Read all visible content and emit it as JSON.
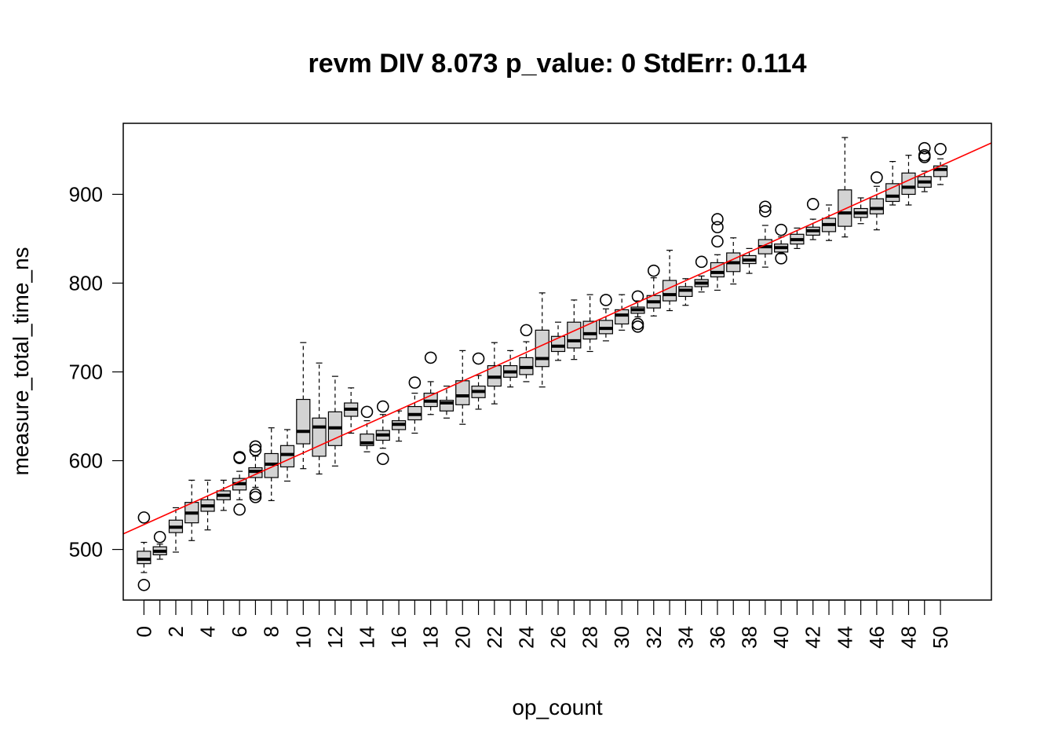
{
  "chart_data": {
    "type": "boxplot",
    "title": "revm DIV 8.073 p_value: 0 StdErr: 0.114",
    "xlabel": "op_count",
    "ylabel": "measure_total_time_ns",
    "categories": [
      "0",
      "1",
      "2",
      "3",
      "4",
      "5",
      "6",
      "7",
      "8",
      "9",
      "10",
      "11",
      "12",
      "13",
      "14",
      "15",
      "16",
      "17",
      "18",
      "19",
      "20",
      "21",
      "22",
      "23",
      "24",
      "25",
      "26",
      "27",
      "28",
      "29",
      "30",
      "31",
      "32",
      "33",
      "34",
      "35",
      "36",
      "37",
      "38",
      "39",
      "40",
      "41",
      "42",
      "43",
      "44",
      "45",
      "46",
      "47",
      "48",
      "49",
      "50"
    ],
    "x_tick_labels": [
      "0",
      "2",
      "4",
      "6",
      "8",
      "10",
      "12",
      "14",
      "16",
      "18",
      "20",
      "22",
      "24",
      "26",
      "28",
      "30",
      "32",
      "34",
      "36",
      "38",
      "40",
      "42",
      "44",
      "46",
      "48",
      "50"
    ],
    "y_ticks": [
      500,
      600,
      700,
      800,
      900
    ],
    "xlim": [
      -1.3,
      53.2
    ],
    "ylim": [
      443,
      980
    ],
    "regression_line": {
      "color": "#ff0000",
      "y_at_x0": 528,
      "y_at_x50": 932
    },
    "box_fill": "#d3d3d3",
    "boxes": [
      {
        "x": 0,
        "whislo": 474,
        "q1": 484,
        "med": 489,
        "q3": 498,
        "whishi": 508,
        "outliers": [
          536,
          460
        ]
      },
      {
        "x": 1,
        "whislo": 489,
        "q1": 494,
        "med": 498,
        "q3": 503,
        "whishi": 506,
        "outliers": [
          514
        ]
      },
      {
        "x": 2,
        "whislo": 497,
        "q1": 519,
        "med": 525,
        "q3": 533,
        "whishi": 547,
        "outliers": []
      },
      {
        "x": 3,
        "whislo": 510,
        "q1": 530,
        "med": 541,
        "q3": 553,
        "whishi": 578,
        "outliers": []
      },
      {
        "x": 4,
        "whislo": 522,
        "q1": 543,
        "med": 549,
        "q3": 556,
        "whishi": 578,
        "outliers": []
      },
      {
        "x": 5,
        "whislo": 544,
        "q1": 556,
        "med": 561,
        "q3": 566,
        "whishi": 578,
        "outliers": []
      },
      {
        "x": 6,
        "whislo": 556,
        "q1": 567,
        "med": 574,
        "q3": 580,
        "whishi": 588,
        "outliers": [
          604,
          603,
          545
        ]
      },
      {
        "x": 7,
        "whislo": 570,
        "q1": 581,
        "med": 588,
        "q3": 592,
        "whishi": 605,
        "outliers": [
          616,
          612,
          562,
          559
        ]
      },
      {
        "x": 8,
        "whislo": 555,
        "q1": 581,
        "med": 596,
        "q3": 608,
        "whishi": 637,
        "outliers": []
      },
      {
        "x": 9,
        "whislo": 577,
        "q1": 593,
        "med": 607,
        "q3": 617,
        "whishi": 635,
        "outliers": []
      },
      {
        "x": 10,
        "whislo": 591,
        "q1": 619,
        "med": 633,
        "q3": 669,
        "whishi": 733,
        "outliers": []
      },
      {
        "x": 11,
        "whislo": 585,
        "q1": 605,
        "med": 638,
        "q3": 648,
        "whishi": 710,
        "outliers": []
      },
      {
        "x": 12,
        "whislo": 594,
        "q1": 617,
        "med": 637,
        "q3": 655,
        "whishi": 695,
        "outliers": []
      },
      {
        "x": 13,
        "whislo": 631,
        "q1": 650,
        "med": 658,
        "q3": 665,
        "whishi": 682,
        "outliers": []
      },
      {
        "x": 14,
        "whislo": 610,
        "q1": 617,
        "med": 620,
        "q3": 630,
        "whishi": 645,
        "outliers": [
          655
        ]
      },
      {
        "x": 15,
        "whislo": 614,
        "q1": 623,
        "med": 629,
        "q3": 634,
        "whishi": 652,
        "outliers": [
          661,
          602
        ]
      },
      {
        "x": 16,
        "whislo": 622,
        "q1": 635,
        "med": 641,
        "q3": 645,
        "whishi": 656,
        "outliers": []
      },
      {
        "x": 17,
        "whislo": 631,
        "q1": 646,
        "med": 652,
        "q3": 661,
        "whishi": 676,
        "outliers": [
          688
        ]
      },
      {
        "x": 18,
        "whislo": 652,
        "q1": 661,
        "med": 667,
        "q3": 676,
        "whishi": 689,
        "outliers": [
          716
        ]
      },
      {
        "x": 19,
        "whislo": 648,
        "q1": 656,
        "med": 665,
        "q3": 668,
        "whishi": 684,
        "outliers": []
      },
      {
        "x": 20,
        "whislo": 641,
        "q1": 663,
        "med": 673,
        "q3": 690,
        "whishi": 724,
        "outliers": []
      },
      {
        "x": 21,
        "whislo": 658,
        "q1": 671,
        "med": 678,
        "q3": 684,
        "whishi": 696,
        "outliers": [
          715
        ]
      },
      {
        "x": 22,
        "whislo": 664,
        "q1": 684,
        "med": 694,
        "q3": 707,
        "whishi": 733,
        "outliers": []
      },
      {
        "x": 23,
        "whislo": 683,
        "q1": 694,
        "med": 700,
        "q3": 707,
        "whishi": 724,
        "outliers": []
      },
      {
        "x": 24,
        "whislo": 689,
        "q1": 697,
        "med": 705,
        "q3": 716,
        "whishi": 734,
        "outliers": [
          747
        ]
      },
      {
        "x": 25,
        "whislo": 683,
        "q1": 706,
        "med": 715,
        "q3": 747,
        "whishi": 789,
        "outliers": []
      },
      {
        "x": 26,
        "whislo": 713,
        "q1": 723,
        "med": 729,
        "q3": 740,
        "whishi": 756,
        "outliers": []
      },
      {
        "x": 27,
        "whislo": 714,
        "q1": 727,
        "med": 735,
        "q3": 756,
        "whishi": 781,
        "outliers": []
      },
      {
        "x": 28,
        "whislo": 723,
        "q1": 737,
        "med": 743,
        "q3": 757,
        "whishi": 787,
        "outliers": []
      },
      {
        "x": 29,
        "whislo": 735,
        "q1": 743,
        "med": 749,
        "q3": 758,
        "whishi": 771,
        "outliers": [
          781
        ]
      },
      {
        "x": 30,
        "whislo": 747,
        "q1": 754,
        "med": 764,
        "q3": 770,
        "whishi": 787,
        "outliers": []
      },
      {
        "x": 31,
        "whislo": 762,
        "q1": 766,
        "med": 770,
        "q3": 773,
        "whishi": 780,
        "outliers": [
          785,
          754,
          751
        ]
      },
      {
        "x": 32,
        "whislo": 763,
        "q1": 772,
        "med": 779,
        "q3": 786,
        "whishi": 806,
        "outliers": [
          814
        ]
      },
      {
        "x": 33,
        "whislo": 769,
        "q1": 780,
        "med": 787,
        "q3": 803,
        "whishi": 837,
        "outliers": []
      },
      {
        "x": 34,
        "whislo": 775,
        "q1": 785,
        "med": 792,
        "q3": 796,
        "whishi": 805,
        "outliers": []
      },
      {
        "x": 35,
        "whislo": 790,
        "q1": 796,
        "med": 800,
        "q3": 804,
        "whishi": 808,
        "outliers": [
          824
        ]
      },
      {
        "x": 36,
        "whislo": 792,
        "q1": 807,
        "med": 812,
        "q3": 823,
        "whishi": 832,
        "outliers": [
          872,
          863,
          847
        ]
      },
      {
        "x": 37,
        "whislo": 799,
        "q1": 813,
        "med": 823,
        "q3": 834,
        "whishi": 851,
        "outliers": []
      },
      {
        "x": 38,
        "whislo": 811,
        "q1": 822,
        "med": 826,
        "q3": 831,
        "whishi": 839,
        "outliers": []
      },
      {
        "x": 39,
        "whislo": 818,
        "q1": 833,
        "med": 841,
        "q3": 849,
        "whishi": 865,
        "outliers": [
          886,
          881
        ]
      },
      {
        "x": 40,
        "whislo": 833,
        "q1": 835,
        "med": 840,
        "q3": 844,
        "whishi": 852,
        "outliers": [
          860,
          828
        ]
      },
      {
        "x": 41,
        "whislo": 839,
        "q1": 844,
        "med": 849,
        "q3": 855,
        "whishi": 862,
        "outliers": []
      },
      {
        "x": 42,
        "whislo": 849,
        "q1": 854,
        "med": 859,
        "q3": 863,
        "whishi": 872,
        "outliers": [
          889
        ]
      },
      {
        "x": 43,
        "whislo": 848,
        "q1": 858,
        "med": 866,
        "q3": 873,
        "whishi": 888,
        "outliers": []
      },
      {
        "x": 44,
        "whislo": 852,
        "q1": 864,
        "med": 879,
        "q3": 905,
        "whishi": 964,
        "outliers": []
      },
      {
        "x": 45,
        "whislo": 867,
        "q1": 874,
        "med": 879,
        "q3": 884,
        "whishi": 896,
        "outliers": []
      },
      {
        "x": 46,
        "whislo": 860,
        "q1": 878,
        "med": 884,
        "q3": 895,
        "whishi": 909,
        "outliers": [
          919
        ]
      },
      {
        "x": 47,
        "whislo": 888,
        "q1": 892,
        "med": 898,
        "q3": 912,
        "whishi": 937,
        "outliers": []
      },
      {
        "x": 48,
        "whislo": 888,
        "q1": 900,
        "med": 908,
        "q3": 924,
        "whishi": 944,
        "outliers": []
      },
      {
        "x": 49,
        "whislo": 903,
        "q1": 908,
        "med": 914,
        "q3": 920,
        "whishi": 926,
        "outliers": [
          952,
          944,
          942
        ]
      },
      {
        "x": 50,
        "whislo": 911,
        "q1": 920,
        "med": 928,
        "q3": 932,
        "whishi": 940,
        "outliers": [
          951
        ]
      }
    ]
  }
}
